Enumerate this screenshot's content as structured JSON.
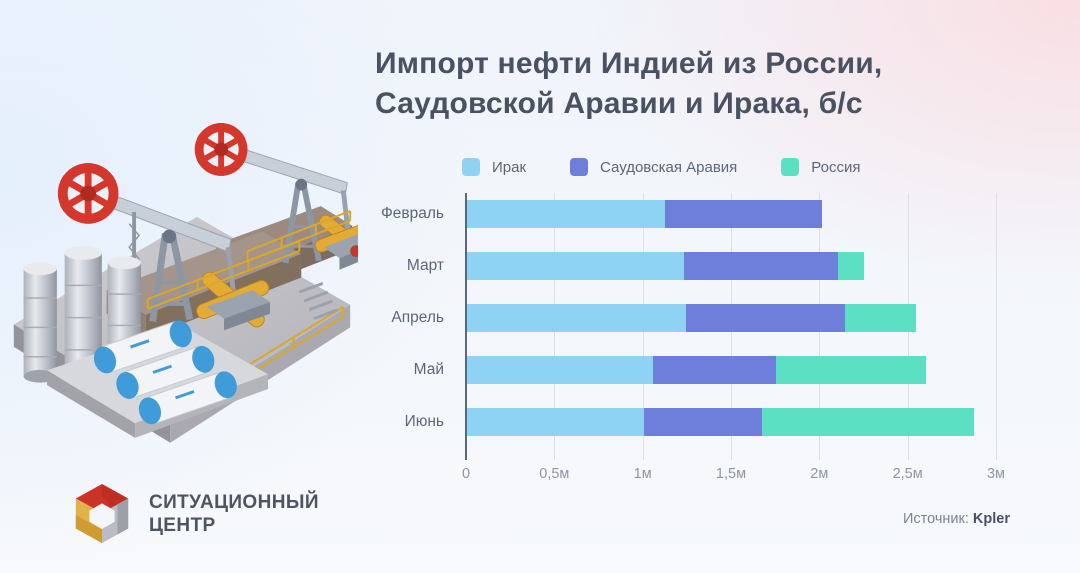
{
  "title": {
    "line1": "Импорт нефти Индией из России,",
    "line2": "Саудовской Аравии и Ирака, б/с"
  },
  "source": {
    "label": "Источник:",
    "value": "Kpler"
  },
  "logo": {
    "line1": "СИТУАЦИОННЫЙ",
    "line2": "ЦЕНТР"
  },
  "icons": {
    "logo_mark": "isometric-open-cube (red top, grey right, gold left faces)",
    "left_art": "3d-oil-pumpjacks-and-tanks-scene"
  },
  "colors": {
    "iraq": "#8ed3f3",
    "saudi_arabia": "#6d7edb",
    "russia": "#5ce0c3",
    "axis_zero_line": "#5a6780",
    "gridline": "#dbdfe9",
    "title_text": "#4a5262",
    "bg_blue": "#e4effd",
    "bg_pink": "#fadee2"
  },
  "chart_data": {
    "type": "bar",
    "orientation": "horizontal",
    "stacked": true,
    "title": "Импорт нефти Индией из России, Саудовской Аравии и Ирака, б/с",
    "categories": [
      "Февраль",
      "Март",
      "Апрель",
      "Май",
      "Июнь"
    ],
    "series": [
      {
        "name": "Ирак",
        "color": "#8ed3f3",
        "values": [
          1.12,
          1.23,
          1.24,
          1.05,
          1.0
        ]
      },
      {
        "name": "Саудовская Аравия",
        "color": "#6d7edb",
        "values": [
          0.89,
          0.87,
          0.9,
          0.7,
          0.67
        ]
      },
      {
        "name": "Россия",
        "color": "#5ce0c3",
        "values": [
          0,
          0.15,
          0.4,
          0.85,
          1.2
        ]
      }
    ],
    "x_ticks": [
      "0",
      "0,5м",
      "1м",
      "1,5м",
      "2м",
      "2,5м",
      "3м"
    ],
    "x_tick_values": [
      0,
      0.5,
      1,
      1.5,
      2,
      2.5,
      3
    ],
    "xlim": [
      0,
      3
    ],
    "grid": "vertical",
    "legend_position": "top"
  }
}
